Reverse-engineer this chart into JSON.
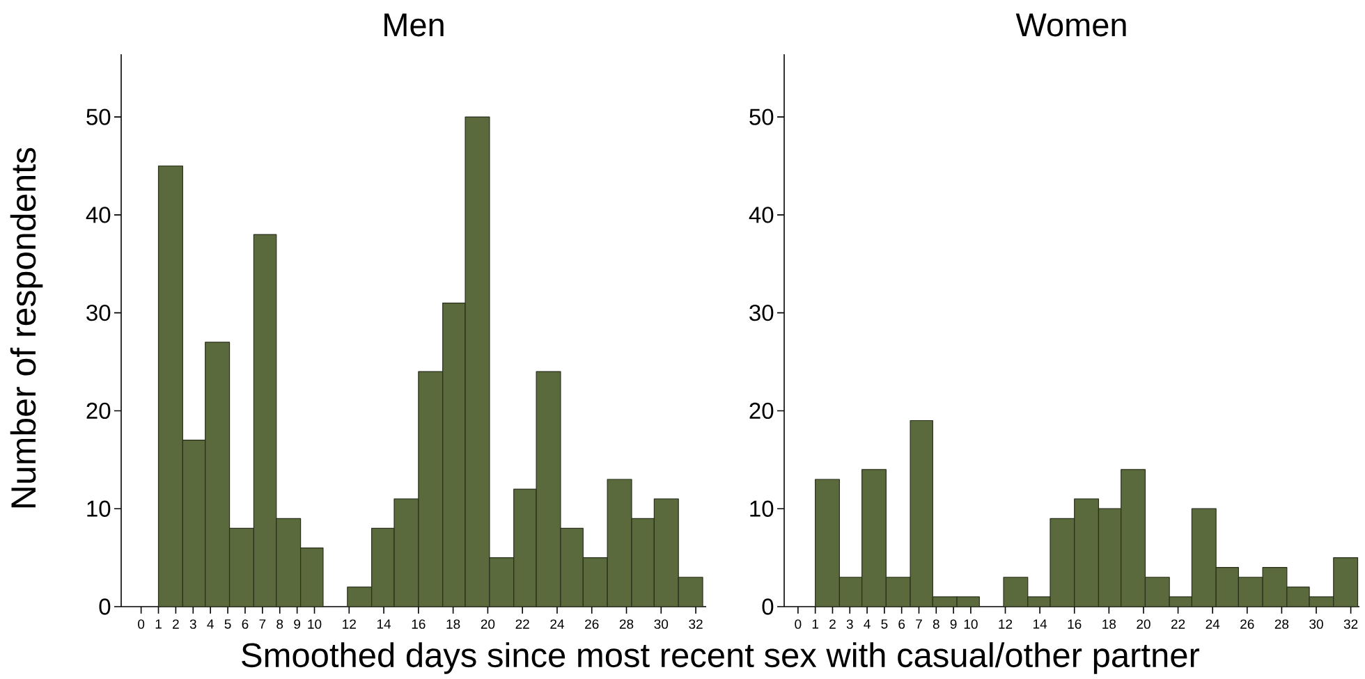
{
  "chart_data": [
    {
      "type": "histogram",
      "title": "Men",
      "xlabel": "Smoothed days since most recent sex with casual/other partner",
      "ylabel": "Number of respondents",
      "bins": [
        1,
        2.4,
        3.7,
        5.1,
        6.5,
        7.8,
        9.2,
        10.5,
        11.9,
        13.3,
        14.6,
        16,
        17.4,
        18.7,
        20.1,
        21.5,
        22.8,
        24.2,
        25.5,
        26.9,
        28.3,
        29.6,
        31,
        32.4
      ],
      "values": [
        45,
        17,
        27,
        8,
        38,
        9,
        6,
        0,
        2,
        8,
        11,
        24,
        31,
        50,
        5,
        12,
        24,
        8,
        5,
        13,
        9,
        11,
        3
      ],
      "color": "#5b6a3d",
      "xlim": [
        -1.15,
        32.6
      ],
      "ylim": [
        0,
        56.4
      ],
      "xticks": [
        0,
        1,
        2,
        3,
        4,
        5,
        6,
        7,
        8,
        9,
        10,
        12,
        14,
        16,
        18,
        20,
        22,
        24,
        26,
        28,
        30,
        32
      ],
      "yticks": [
        0,
        10,
        20,
        30,
        40,
        50
      ]
    },
    {
      "type": "histogram",
      "title": "Women",
      "bins": [
        1,
        2.4,
        3.7,
        5.1,
        6.5,
        7.8,
        9.2,
        10.5,
        11.9,
        13.3,
        14.6,
        16,
        17.4,
        18.7,
        20.1,
        21.5,
        22.8,
        24.2,
        25.5,
        26.9,
        28.3,
        29.6,
        31,
        32.4
      ],
      "values": [
        13,
        3,
        14,
        3,
        19,
        1,
        1,
        0,
        3,
        1,
        9,
        11,
        10,
        14,
        3,
        1,
        10,
        4,
        3,
        4,
        2,
        1,
        5
      ],
      "color": "#5b6a3d",
      "xlim": [
        -0.8,
        32.5
      ],
      "ylim": [
        0,
        56.4
      ],
      "xticks": [
        0,
        1,
        2,
        3,
        4,
        5,
        6,
        7,
        8,
        9,
        10,
        12,
        14,
        16,
        18,
        20,
        22,
        24,
        26,
        28,
        30,
        32
      ],
      "yticks": [
        0,
        10,
        20,
        30,
        40,
        50
      ]
    }
  ]
}
